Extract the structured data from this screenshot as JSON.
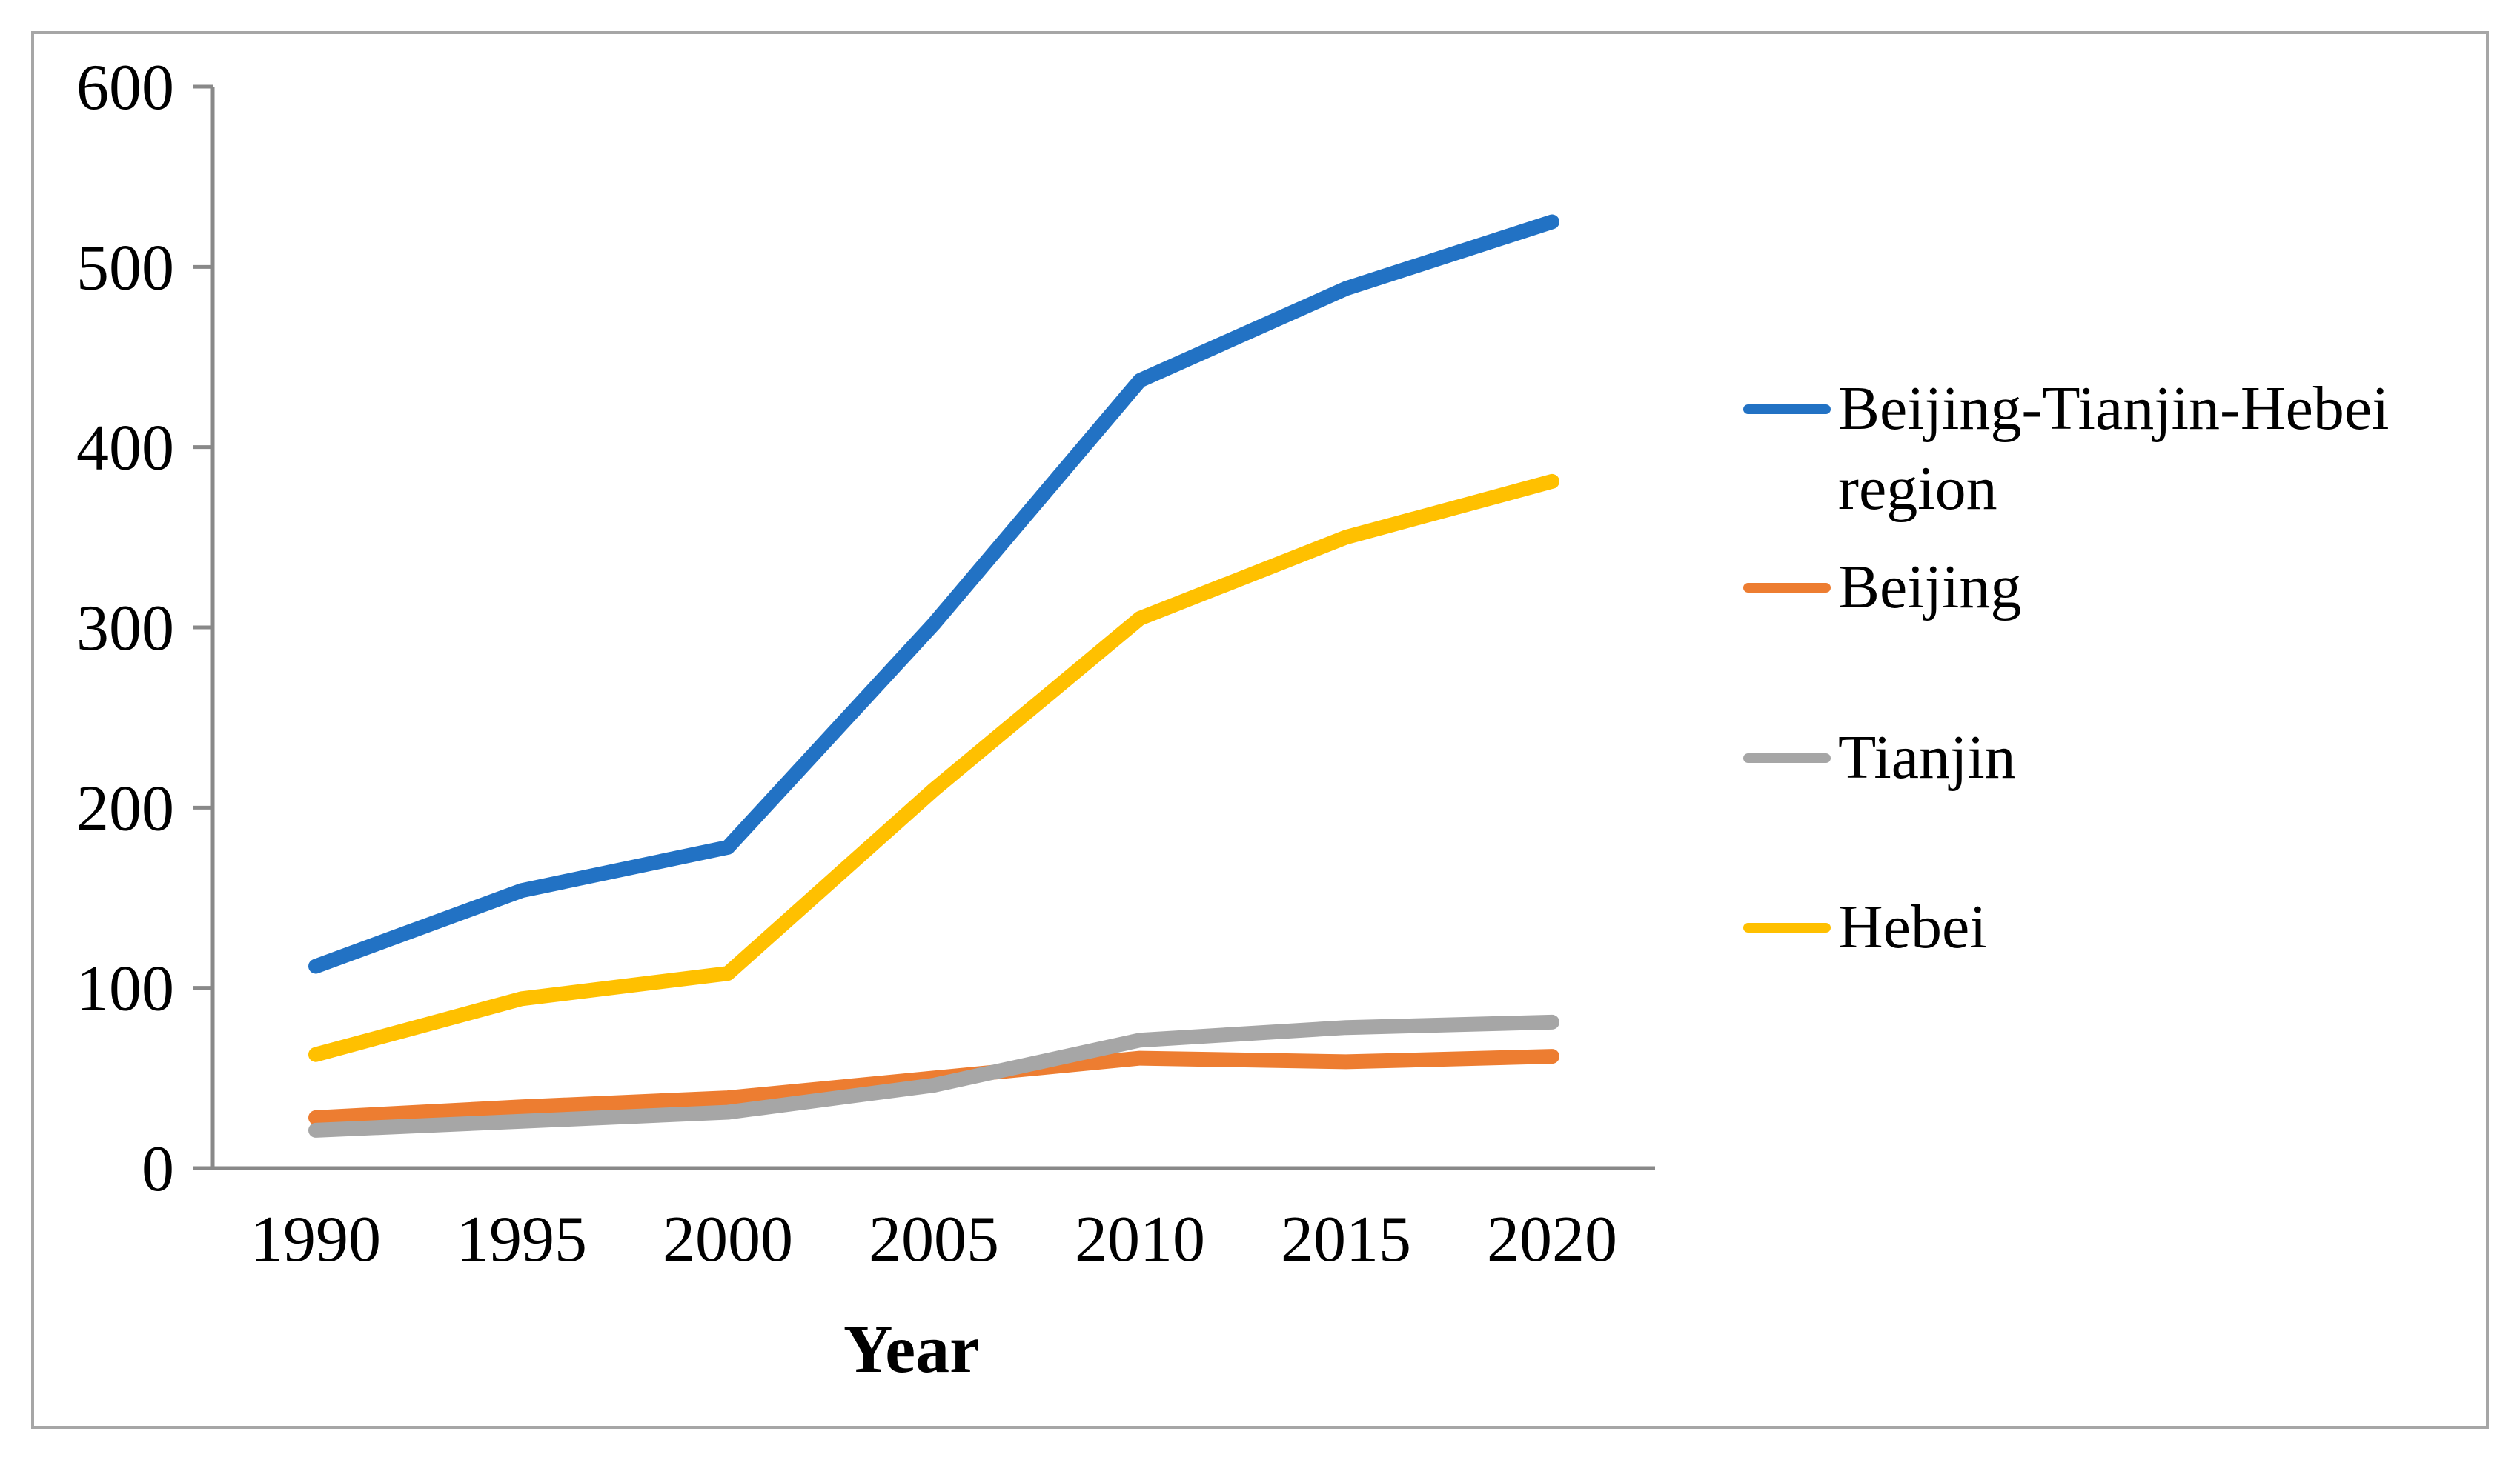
{
  "chart_data": {
    "type": "line",
    "categories": [
      "1990",
      "1995",
      "2000",
      "2005",
      "2010",
      "2015",
      "2020"
    ],
    "series": [
      {
        "name": "Beijing-Tianjin-Hebei region",
        "color": "#2272C4",
        "values": [
          112,
          154,
          178,
          302,
          437,
          488,
          525
        ]
      },
      {
        "name": "Beijing",
        "color": "#ED7D31",
        "values": [
          28,
          34,
          39,
          50,
          61,
          59,
          62
        ]
      },
      {
        "name": "Tianjin",
        "color": "#A6A6A6",
        "values": [
          21,
          26,
          31,
          46,
          71,
          78,
          81
        ]
      },
      {
        "name": "Hebei",
        "color": "#FFC000",
        "values": [
          63,
          94,
          108,
          210,
          305,
          350,
          381
        ]
      }
    ],
    "title": "",
    "xlabel": "Year",
    "ylabel": "",
    "ylim": [
      0,
      600
    ],
    "y_ticks": [
      0,
      100,
      200,
      300,
      400,
      500,
      600
    ],
    "grid": false,
    "legend_position": "right",
    "axis_color": "#898989",
    "text_color": "#000000"
  },
  "legend": {
    "entries": [
      {
        "label": "Beijing-Tianjin-Hebei\nregion"
      },
      {
        "label": "Beijing"
      },
      {
        "label": "Tianjin"
      },
      {
        "label": "Hebei"
      }
    ]
  },
  "frame": {
    "border_color": "#a6a6a6"
  }
}
